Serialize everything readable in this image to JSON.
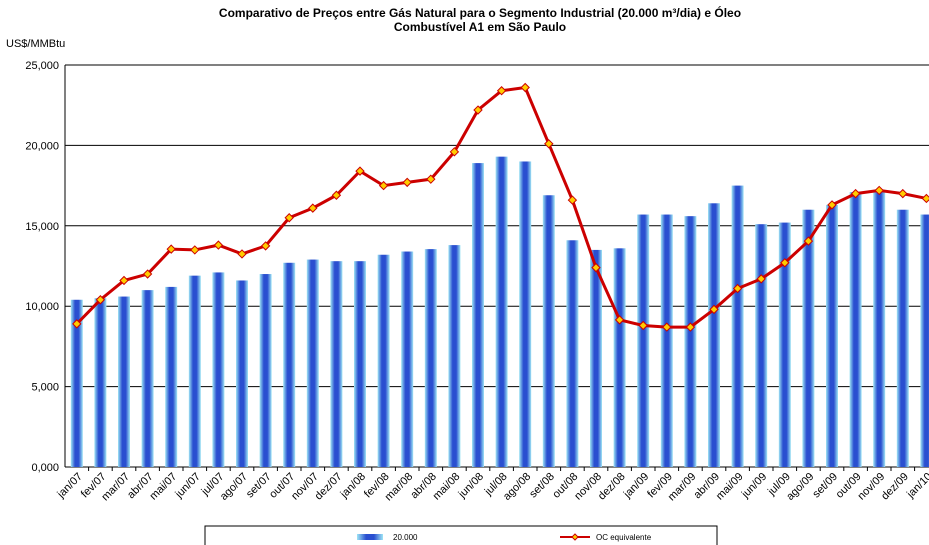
{
  "chart_data": {
    "type": "bar-line",
    "title": [
      "Comparativo de Preços entre Gás Natural para o Segmento Industrial (20.000 m³/dia) e Óleo",
      "Combustível A1 em São Paulo"
    ],
    "y_label": "US$/MMBtu",
    "categories": [
      "jan/07",
      "fev/07",
      "mar/07",
      "abr/07",
      "mai/07",
      "jun/07",
      "jul/07",
      "ago/07",
      "set/07",
      "out/07",
      "nov/07",
      "dez/07",
      "jan/08",
      "fev/08",
      "mar/08",
      "abr/08",
      "mai/08",
      "jun/08",
      "jul/08",
      "ago/08",
      "set/08",
      "out/08",
      "nov/08",
      "dez/08",
      "jan/09",
      "fev/09",
      "mar/09",
      "abr/09",
      "mai/09",
      "jun/09",
      "jul/09",
      "ago/09",
      "set/09",
      "out/09",
      "nov/09",
      "dez/09",
      "jan/10"
    ],
    "series": [
      {
        "name": "20.000",
        "type": "bar",
        "color": "#2a4fd0",
        "values": [
          10400,
          10500,
          10600,
          11000,
          11200,
          11900,
          12100,
          11600,
          12000,
          12700,
          12900,
          12800,
          12800,
          13200,
          13400,
          13550,
          13800,
          18900,
          19300,
          19000,
          16900,
          14100,
          13500,
          13600,
          15700,
          15700,
          15600,
          16400,
          17500,
          15100,
          15200,
          16000,
          16300,
          17100,
          17100,
          16000,
          15700
        ]
      },
      {
        "name": "OC equivalente",
        "type": "line",
        "color": "#cc0000",
        "marker_color": "#ffcc00",
        "values": [
          8900,
          10400,
          11600,
          12000,
          13550,
          13500,
          13800,
          13250,
          13750,
          15500,
          16100,
          16900,
          18400,
          17500,
          17700,
          17900,
          19600,
          22200,
          23400,
          23600,
          20100,
          16600,
          12400,
          9150,
          8800,
          8700,
          8700,
          9800,
          11100,
          11700,
          12700,
          14050,
          16300,
          17000,
          17200,
          17000,
          16700
        ]
      }
    ],
    "ylim": [
      0,
      25000
    ],
    "yticks": [
      {
        "value": 0,
        "label": "0,000"
      },
      {
        "value": 5000,
        "label": "5,000"
      },
      {
        "value": 10000,
        "label": "10,000"
      },
      {
        "value": 15000,
        "label": "15,000"
      },
      {
        "value": 20000,
        "label": "20,000"
      },
      {
        "value": 25000,
        "label": "25,000"
      }
    ],
    "grid": true,
    "legend": "bottom"
  }
}
